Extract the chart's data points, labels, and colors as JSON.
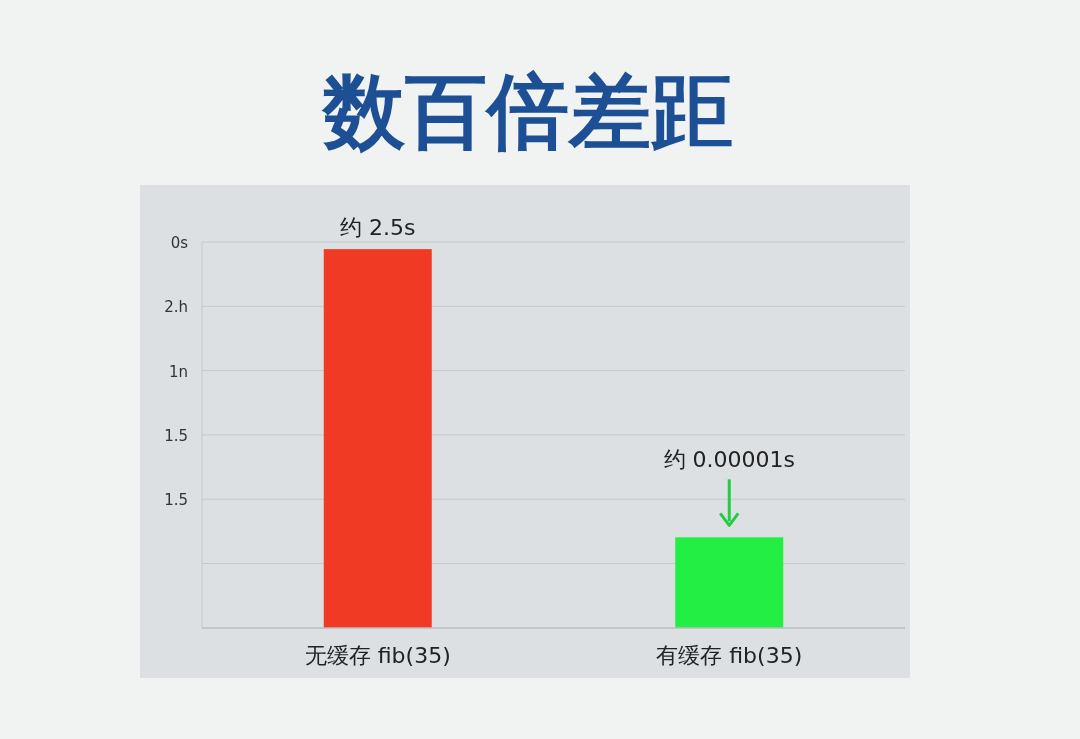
{
  "chart_data": {
    "type": "bar",
    "title": "数百倍差距",
    "categories": [
      "无缓存 fib(35)",
      "有缓存 fib(35)"
    ],
    "values": [
      2.5,
      1e-05
    ],
    "log": true,
    "ylim": [
      2e-07,
      3.4
    ],
    "colors": [
      "#f03a24",
      "#22ee44"
    ],
    "value_labels": [
      "约 2.5s",
      "约 0.00001s"
    ],
    "annotations": [
      "0s",
      "2.h",
      "1n",
      "1.5",
      "1.5"
    ],
    "grid": "y"
  }
}
